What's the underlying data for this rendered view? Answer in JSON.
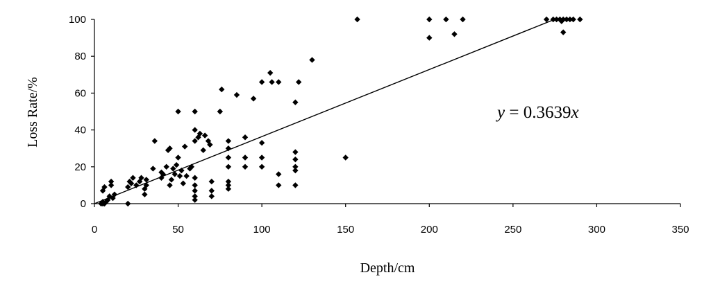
{
  "chart_data": {
    "type": "scatter",
    "xlabel": "Depth/cm",
    "ylabel": "Loss Rate/%",
    "xlim": [
      0,
      350
    ],
    "ylim": [
      0,
      100
    ],
    "x_ticks": [
      0,
      50,
      100,
      150,
      200,
      250,
      300,
      350
    ],
    "y_ticks": [
      0,
      20,
      40,
      60,
      80,
      100
    ],
    "grid": false,
    "marker": "diamond",
    "color": "#000000",
    "trendline": {
      "slope": 0.3639,
      "intercept": 0,
      "x_range": [
        0,
        275
      ],
      "equation_var": "y",
      "equation_rest": " = 0.3639",
      "equation_var2": "x"
    },
    "points": [
      [
        4,
        0
      ],
      [
        5,
        0
      ],
      [
        5,
        1
      ],
      [
        6,
        0
      ],
      [
        7,
        1
      ],
      [
        5,
        7
      ],
      [
        6,
        9
      ],
      [
        8,
        2
      ],
      [
        9,
        4
      ],
      [
        10,
        10
      ],
      [
        10,
        12
      ],
      [
        11,
        3
      ],
      [
        12,
        5
      ],
      [
        20,
        0
      ],
      [
        20,
        9
      ],
      [
        21,
        12
      ],
      [
        22,
        11
      ],
      [
        23,
        14
      ],
      [
        25,
        10
      ],
      [
        27,
        12
      ],
      [
        28,
        14
      ],
      [
        30,
        5
      ],
      [
        30,
        8
      ],
      [
        31,
        10
      ],
      [
        31,
        13
      ],
      [
        35,
        19
      ],
      [
        36,
        34
      ],
      [
        40,
        14
      ],
      [
        40,
        17
      ],
      [
        41,
        16
      ],
      [
        43,
        20
      ],
      [
        44,
        29
      ],
      [
        45,
        30
      ],
      [
        45,
        10
      ],
      [
        46,
        13
      ],
      [
        47,
        19
      ],
      [
        48,
        16
      ],
      [
        49,
        21
      ],
      [
        50,
        50
      ],
      [
        50,
        25
      ],
      [
        51,
        15
      ],
      [
        52,
        18
      ],
      [
        53,
        11
      ],
      [
        54,
        31
      ],
      [
        55,
        15
      ],
      [
        57,
        19
      ],
      [
        58,
        20
      ],
      [
        60,
        50
      ],
      [
        60,
        40
      ],
      [
        60,
        34
      ],
      [
        60,
        14
      ],
      [
        60,
        10
      ],
      [
        60,
        7
      ],
      [
        60,
        4
      ],
      [
        60,
        2
      ],
      [
        62,
        36
      ],
      [
        63,
        38
      ],
      [
        65,
        29
      ],
      [
        66,
        37
      ],
      [
        68,
        34
      ],
      [
        69,
        32
      ],
      [
        70,
        12
      ],
      [
        70,
        7
      ],
      [
        70,
        4
      ],
      [
        75,
        50
      ],
      [
        76,
        62
      ],
      [
        80,
        34
      ],
      [
        80,
        30
      ],
      [
        80,
        25
      ],
      [
        80,
        20
      ],
      [
        80,
        12
      ],
      [
        80,
        10
      ],
      [
        80,
        8
      ],
      [
        85,
        59
      ],
      [
        90,
        36
      ],
      [
        90,
        25
      ],
      [
        90,
        20
      ],
      [
        95,
        57
      ],
      [
        100,
        66
      ],
      [
        100,
        33
      ],
      [
        100,
        25
      ],
      [
        100,
        20
      ],
      [
        105,
        71
      ],
      [
        106,
        66
      ],
      [
        110,
        66
      ],
      [
        110,
        16
      ],
      [
        110,
        10
      ],
      [
        120,
        55
      ],
      [
        120,
        28
      ],
      [
        120,
        24
      ],
      [
        120,
        20
      ],
      [
        120,
        18
      ],
      [
        120,
        10
      ],
      [
        122,
        66
      ],
      [
        130,
        78
      ],
      [
        150,
        25
      ],
      [
        157,
        100
      ],
      [
        200,
        100
      ],
      [
        200,
        90
      ],
      [
        210,
        100
      ],
      [
        215,
        92
      ],
      [
        220,
        100
      ],
      [
        270,
        100
      ],
      [
        274,
        100
      ],
      [
        276,
        100
      ],
      [
        278,
        100
      ],
      [
        279,
        99
      ],
      [
        280,
        93
      ],
      [
        280,
        100
      ],
      [
        282,
        100
      ],
      [
        284,
        100
      ],
      [
        286,
        100
      ],
      [
        290,
        100
      ]
    ]
  }
}
